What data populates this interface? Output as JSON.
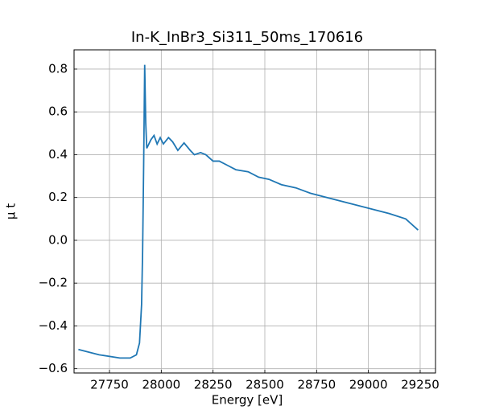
{
  "chart_data": {
    "type": "line",
    "title": "In-K_InBr3_Si311_50ms_170616",
    "x_label": "Energy [eV]",
    "y_label": "μ t",
    "grid": true,
    "xlim": [
      27579,
      29324
    ],
    "ylim": [
      -0.62,
      0.89
    ],
    "xticks": [
      27750,
      28000,
      28250,
      28500,
      28750,
      29000,
      29250
    ],
    "yticks": [
      {
        "value": -0.6,
        "label": "−0.6"
      },
      {
        "value": -0.4,
        "label": "−0.4"
      },
      {
        "value": -0.2,
        "label": "−0.2"
      },
      {
        "value": 0,
        "label": "0.0"
      },
      0.2,
      0.4,
      0.6,
      0.8
    ],
    "x": [
      27600,
      27700,
      27800,
      27850,
      27880,
      27895,
      27905,
      27910,
      27915,
      27920,
      27925,
      27930,
      27950,
      27965,
      27980,
      27995,
      28010,
      28035,
      28055,
      28080,
      28110,
      28140,
      28160,
      28190,
      28215,
      28250,
      28280,
      28320,
      28360,
      28420,
      28470,
      28520,
      28580,
      28650,
      28720,
      28800,
      28900,
      29000,
      29100,
      29180,
      29240
    ],
    "series": [
      {
        "name": "In-K_InBr3_Si311_50ms_170616",
        "color": "#1f77b4",
        "values": [
          -0.51,
          -0.535,
          -0.55,
          -0.55,
          -0.535,
          -0.48,
          -0.3,
          -0.05,
          0.35,
          0.82,
          0.55,
          0.43,
          0.47,
          0.49,
          0.45,
          0.48,
          0.45,
          0.48,
          0.46,
          0.42,
          0.455,
          0.42,
          0.4,
          0.41,
          0.4,
          0.37,
          0.37,
          0.35,
          0.33,
          0.32,
          0.295,
          0.285,
          0.26,
          0.245,
          0.22,
          0.2,
          0.175,
          0.15,
          0.125,
          0.1,
          0.048
        ]
      }
    ]
  }
}
